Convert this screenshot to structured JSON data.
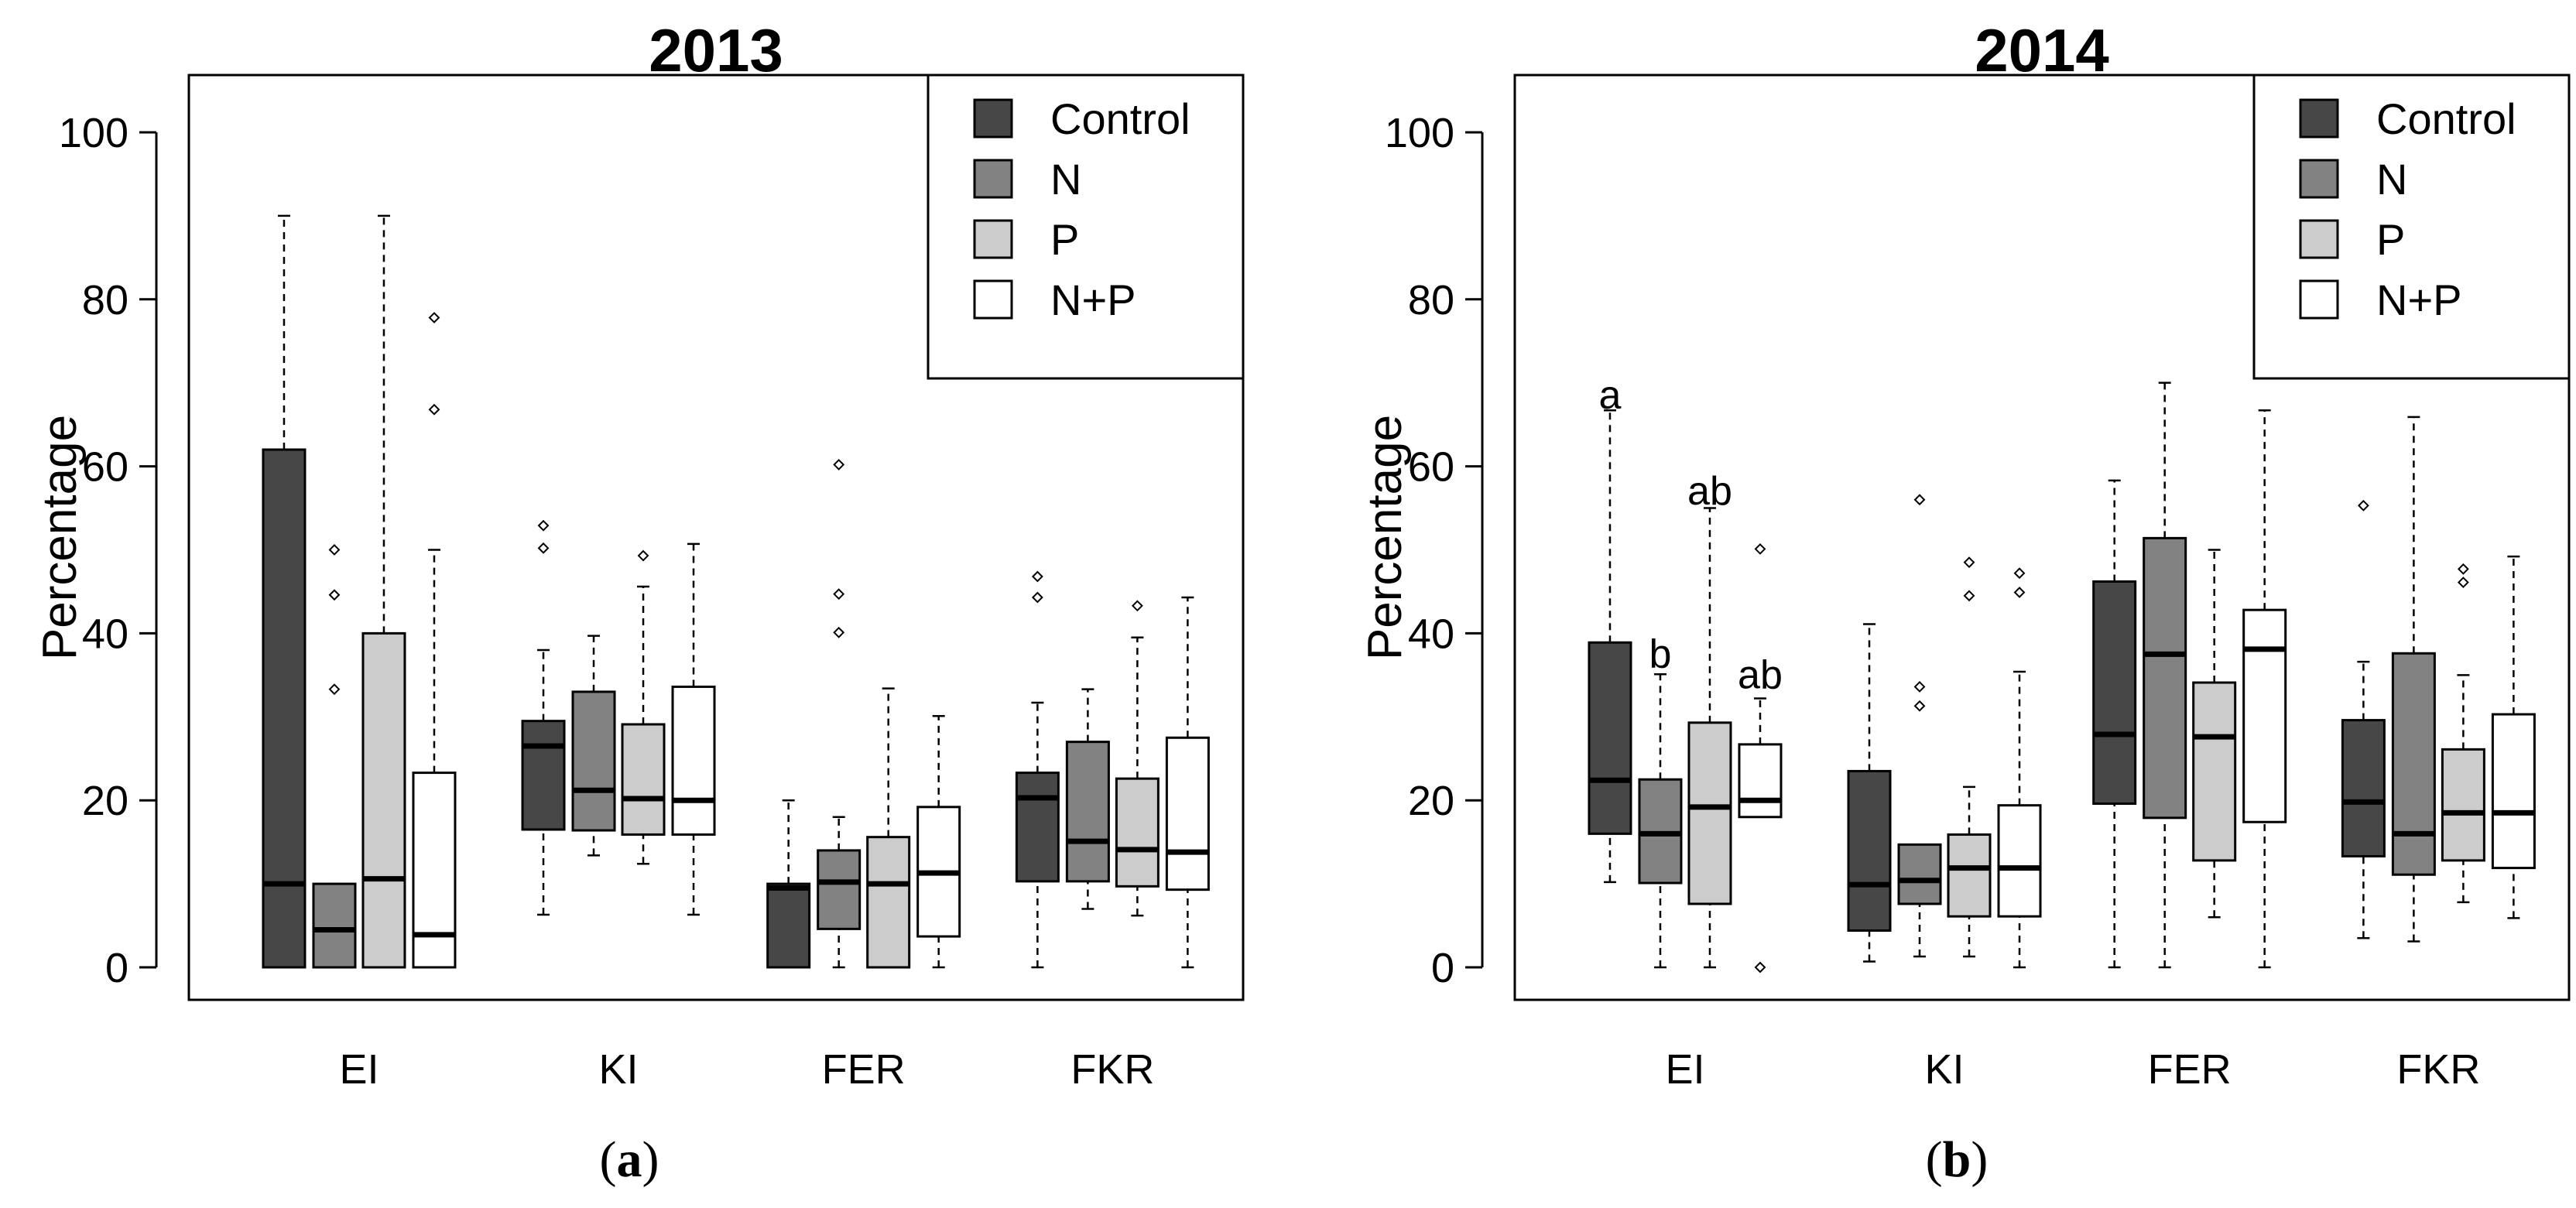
{
  "chart_data": [
    {
      "type": "box",
      "title": "2013",
      "panel_label": "a",
      "ylabel": "Percentage",
      "ylim": [
        0,
        105
      ],
      "yticks": [
        0,
        20,
        40,
        60,
        80,
        100
      ],
      "categories": [
        "EI",
        "KI",
        "FER",
        "FKR"
      ],
      "legend": [
        "Control",
        "N",
        "P",
        "N+P"
      ],
      "legend_position": "top-right",
      "series_colors": [
        "#474747",
        "#828282",
        "#cccccc",
        "#ffffff"
      ],
      "boxes": [
        [
          {
            "min": 0,
            "q1": 0,
            "median": 10,
            "q3": 62,
            "max": 90,
            "outliers": []
          },
          {
            "min": 0,
            "q1": 0,
            "median": 4.5,
            "q3": 10,
            "max": 10,
            "outliers": [
              33.3,
              44.6,
              50
            ]
          },
          {
            "min": 0,
            "q1": 0,
            "median": 10.6,
            "q3": 40,
            "max": 90,
            "outliers": []
          },
          {
            "min": 0,
            "q1": 0,
            "median": 3.9,
            "q3": 23.3,
            "max": 50,
            "outliers": [
              66.8,
              77.8
            ]
          }
        ],
        [
          {
            "min": 6.3,
            "q1": 16.5,
            "median": 26.5,
            "q3": 29.5,
            "max": 38,
            "outliers": [
              50.2,
              52.9
            ]
          },
          {
            "min": 13.4,
            "q1": 16.4,
            "median": 21.2,
            "q3": 33,
            "max": 39.7,
            "outliers": []
          },
          {
            "min": 12.4,
            "q1": 15.9,
            "median": 20.2,
            "q3": 29.1,
            "max": 45.6,
            "outliers": [
              49.3
            ]
          },
          {
            "min": 6.3,
            "q1": 15.9,
            "median": 20,
            "q3": 33.6,
            "max": 50.7,
            "outliers": []
          }
        ],
        [
          {
            "min": 0,
            "q1": 0,
            "median": 9.5,
            "q3": 10,
            "max": 20,
            "outliers": []
          },
          {
            "min": 0,
            "q1": 4.6,
            "median": 10.2,
            "q3": 14,
            "max": 18,
            "outliers": [
              40.1,
              44.7,
              60.2
            ]
          },
          {
            "min": 0,
            "q1": 0,
            "median": 10,
            "q3": 15.6,
            "max": 33.4,
            "outliers": []
          },
          {
            "min": 0,
            "q1": 3.7,
            "median": 11.3,
            "q3": 19.2,
            "max": 30.1,
            "outliers": []
          }
        ],
        [
          {
            "min": 0,
            "q1": 10.3,
            "median": 20.3,
            "q3": 23.3,
            "max": 31.7,
            "outliers": [
              44.3,
              46.8
            ]
          },
          {
            "min": 7,
            "q1": 10.3,
            "median": 15.1,
            "q3": 27,
            "max": 33.3,
            "outliers": []
          },
          {
            "min": 6.2,
            "q1": 9.7,
            "median": 14.1,
            "q3": 22.6,
            "max": 39.5,
            "outliers": [
              43.3
            ]
          },
          {
            "min": 0,
            "q1": 9.3,
            "median": 13.8,
            "q3": 27.5,
            "max": 44.3,
            "outliers": []
          }
        ]
      ],
      "annotations": []
    },
    {
      "type": "box",
      "title": "2014",
      "panel_label": "b",
      "ylabel": "Percentage",
      "ylim": [
        0,
        105
      ],
      "yticks": [
        0,
        20,
        40,
        60,
        80,
        100
      ],
      "categories": [
        "EI",
        "KI",
        "FER",
        "FKR"
      ],
      "legend": [
        "Control",
        "N",
        "P",
        "N+P"
      ],
      "legend_position": "top-right",
      "series_colors": [
        "#474747",
        "#828282",
        "#cccccc",
        "#ffffff"
      ],
      "boxes": [
        [
          {
            "min": 10.2,
            "q1": 16,
            "median": 22.4,
            "q3": 38.9,
            "max": 66.7,
            "outliers": []
          },
          {
            "min": 0,
            "q1": 10.1,
            "median": 16,
            "q3": 22.5,
            "max": 35.1,
            "outliers": []
          },
          {
            "min": 0,
            "q1": 7.6,
            "median": 19.2,
            "q3": 29.3,
            "max": 55,
            "outliers": []
          },
          {
            "min": 18,
            "q1": 18,
            "median": 20,
            "q3": 26.7,
            "max": 32.2,
            "outliers": [
              0,
              50.1
            ]
          }
        ],
        [
          {
            "min": 0.7,
            "q1": 4.4,
            "median": 9.9,
            "q3": 23.5,
            "max": 41.1,
            "outliers": []
          },
          {
            "min": 1.3,
            "q1": 7.6,
            "median": 10.4,
            "q3": 14.7,
            "max": 14.7,
            "outliers": [
              31.3,
              33.6,
              56
            ]
          },
          {
            "min": 1.3,
            "q1": 6.1,
            "median": 11.9,
            "q3": 15.9,
            "max": 21.6,
            "outliers": [
              44.5,
              48.5
            ]
          },
          {
            "min": 0,
            "q1": 6.1,
            "median": 11.9,
            "q3": 19.4,
            "max": 35.4,
            "outliers": [
              44.9,
              47.2
            ]
          }
        ],
        [
          {
            "min": 0,
            "q1": 19.6,
            "median": 27.9,
            "q3": 46.2,
            "max": 58.3,
            "outliers": []
          },
          {
            "min": 0,
            "q1": 17.9,
            "median": 37.5,
            "q3": 51.4,
            "max": 70,
            "outliers": []
          },
          {
            "min": 6,
            "q1": 12.8,
            "median": 27.6,
            "q3": 34.1,
            "max": 50,
            "outliers": []
          },
          {
            "min": 0,
            "q1": 17.4,
            "median": 38.1,
            "q3": 42.8,
            "max": 66.7,
            "outliers": []
          }
        ],
        [
          {
            "min": 3.5,
            "q1": 13.3,
            "median": 19.8,
            "q3": 29.6,
            "max": 36.6,
            "outliers": [
              55.3
            ]
          },
          {
            "min": 3.1,
            "q1": 11.1,
            "median": 16,
            "q3": 37.6,
            "max": 65.9,
            "outliers": []
          },
          {
            "min": 7.8,
            "q1": 12.8,
            "median": 18.5,
            "q3": 26.1,
            "max": 35,
            "outliers": [
              46.1,
              47.7
            ]
          },
          {
            "min": 5.9,
            "q1": 11.9,
            "median": 18.5,
            "q3": 30.3,
            "max": 49.2,
            "outliers": []
          }
        ]
      ],
      "annotations": [
        {
          "category": "EI",
          "series": "Control",
          "text": "a",
          "value": 67.3
        },
        {
          "category": "EI",
          "series": "N",
          "text": "b",
          "value": 36.3
        },
        {
          "category": "EI",
          "series": "P",
          "text": "ab",
          "value": 55.8
        },
        {
          "category": "EI",
          "series": "N+P",
          "text": "ab",
          "value": 33.8
        }
      ]
    }
  ]
}
